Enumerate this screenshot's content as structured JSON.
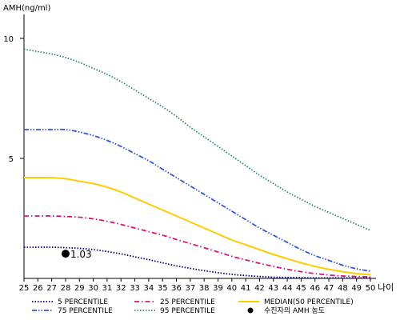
{
  "chart_data": {
    "type": "line",
    "ylabel": "AMH(ng/ml)",
    "xlabel": "나이",
    "xlim": [
      25,
      50
    ],
    "ylim": [
      0,
      11
    ],
    "y_ticks": [
      5,
      10
    ],
    "x": [
      25,
      26,
      27,
      28,
      29,
      30,
      31,
      32,
      33,
      34,
      35,
      36,
      37,
      38,
      39,
      40,
      41,
      42,
      43,
      44,
      45,
      46,
      47,
      48,
      49,
      50
    ],
    "series": [
      {
        "name": "95 PERCENTILE",
        "color": "#2e8b57",
        "dash": "dotted",
        "values": [
          9.55,
          9.45,
          9.35,
          9.2,
          9.0,
          8.75,
          8.5,
          8.2,
          7.85,
          7.5,
          7.15,
          6.75,
          6.3,
          5.9,
          5.5,
          5.1,
          4.7,
          4.3,
          3.95,
          3.6,
          3.3,
          3.0,
          2.75,
          2.5,
          2.25,
          2.0
        ]
      },
      {
        "name": "75 PERCENTILE",
        "color": "#3355dd",
        "dash": "dashdotdot",
        "values": [
          6.2,
          6.2,
          6.2,
          6.2,
          6.1,
          5.95,
          5.75,
          5.5,
          5.2,
          4.9,
          4.55,
          4.2,
          3.85,
          3.5,
          3.15,
          2.8,
          2.45,
          2.1,
          1.8,
          1.5,
          1.2,
          0.95,
          0.75,
          0.55,
          0.4,
          0.3
        ]
      },
      {
        "name": "MEDIAN(50 PERCENTILE)",
        "color": "#ffcc00",
        "dash": "solid",
        "values": [
          4.2,
          4.2,
          4.2,
          4.15,
          4.05,
          3.95,
          3.8,
          3.6,
          3.35,
          3.1,
          2.85,
          2.6,
          2.35,
          2.1,
          1.85,
          1.6,
          1.4,
          1.2,
          1.0,
          0.82,
          0.65,
          0.5,
          0.38,
          0.28,
          0.2,
          0.15
        ]
      },
      {
        "name": "25 PERCENTILE",
        "color": "#dd1177",
        "dash": "dashdot",
        "values": [
          2.6,
          2.6,
          2.6,
          2.58,
          2.55,
          2.48,
          2.38,
          2.25,
          2.1,
          1.95,
          1.8,
          1.62,
          1.45,
          1.28,
          1.1,
          0.92,
          0.77,
          0.63,
          0.5,
          0.38,
          0.28,
          0.2,
          0.14,
          0.1,
          0.08,
          0.06
        ]
      },
      {
        "name": "5 PERCENTILE",
        "color": "#000088",
        "dash": "dotted",
        "values": [
          1.3,
          1.3,
          1.3,
          1.28,
          1.25,
          1.2,
          1.12,
          1.02,
          0.9,
          0.78,
          0.65,
          0.52,
          0.42,
          0.32,
          0.24,
          0.17,
          0.12,
          0.08,
          0.05,
          0.04,
          0.03,
          0.02,
          0.02,
          0.02,
          0.02,
          0.02
        ]
      }
    ],
    "legend_order": [
      "5 PERCENTILE",
      "25 PERCENTILE",
      "MEDIAN(50 PERCENTILE)",
      "75 PERCENTILE",
      "95 PERCENTILE"
    ],
    "legend_position": "bottom",
    "marker": {
      "label": "수진자의 AMH 농도",
      "x": 28,
      "y": 1.03,
      "value_label": "1.03",
      "color": "#000000"
    },
    "grid": false
  }
}
